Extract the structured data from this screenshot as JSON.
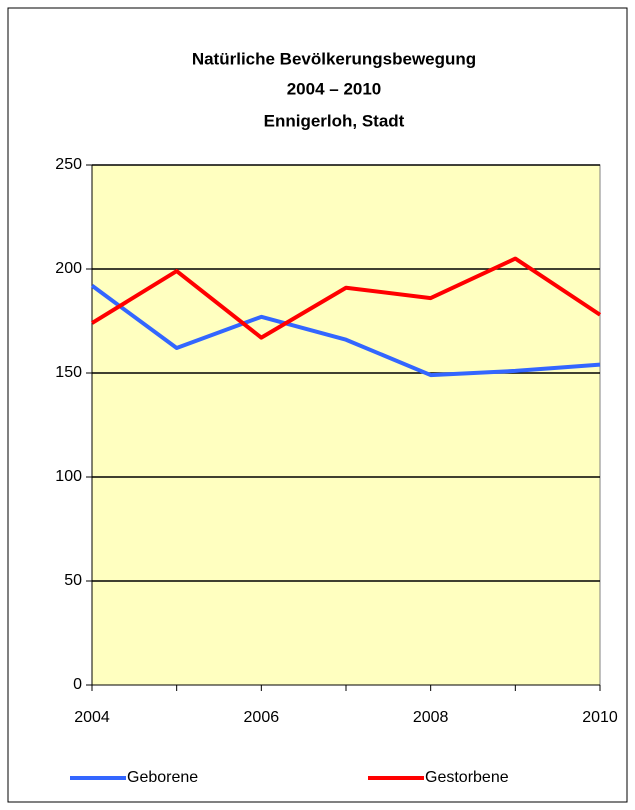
{
  "chart_data": {
    "type": "line",
    "title": [
      "Natürliche Bevölkerungsbewegung",
      "2004 – 2010",
      "Ennigerloh, Stadt"
    ],
    "x": [
      2004,
      2005,
      2006,
      2007,
      2008,
      2009,
      2010
    ],
    "xlim": [
      2004,
      2010
    ],
    "xticks": [
      2004,
      2006,
      2008,
      2010
    ],
    "ylim": [
      0,
      250
    ],
    "yticks": [
      0,
      50,
      100,
      150,
      200,
      250
    ],
    "grid": true,
    "legend": "bottom",
    "background": "#ffffc0",
    "series": [
      {
        "name": "Geborene",
        "color": "#3366ff",
        "values": [
          192,
          162,
          177,
          166,
          149,
          151,
          154
        ]
      },
      {
        "name": "Gestorbene",
        "color": "#ff0000",
        "values": [
          174,
          199,
          167,
          191,
          186,
          205,
          178
        ]
      }
    ]
  }
}
